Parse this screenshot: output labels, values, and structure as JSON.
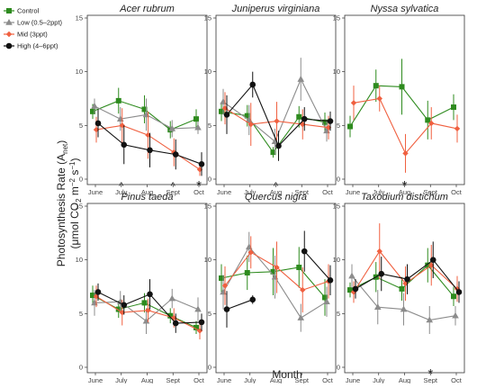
{
  "chart_data": {
    "type": "line",
    "ylabel_line1": "Photosynthesis Rate (A",
    "ylabel_sub": "net",
    "ylabel_line1_end": ")",
    "ylabel_line2": "(μmol CO",
    "ylabel_line2_sub2": "2",
    "ylabel_line2_m": " m",
    "ylabel_line2_sup1": "−2",
    "ylabel_line2_s": " s",
    "ylabel_line2_sup2": "−1",
    "ylabel_line2_end": ")",
    "xlabel": "Month",
    "categories": [
      "June",
      "July",
      "Aug",
      "Sept",
      "Oct"
    ],
    "ylim": [
      0,
      15
    ],
    "yticks": [
      0,
      5,
      10,
      15
    ],
    "legend": {
      "placement": "top-left",
      "entries": [
        {
          "name": "Control",
          "color": "#2e8b1e",
          "marker": "square"
        },
        {
          "name": "Low (0.5–2ppt)",
          "color": "#8c8c8c",
          "marker": "triangle"
        },
        {
          "name": "Mid (3ppt)",
          "color": "#f06040",
          "marker": "diamond"
        },
        {
          "name": "High (4–6ppt)",
          "color": "#111111",
          "marker": "circle"
        }
      ]
    },
    "panels": [
      {
        "title": "Acer rubrum",
        "series": [
          {
            "name": "Control",
            "x": [
              0,
              1,
              2,
              3,
              4
            ],
            "values": [
              6.3,
              7.3,
              6.5,
              4.6,
              5.6
            ],
            "err": [
              0.7,
              1.2,
              1.3,
              0.8,
              0.9
            ]
          },
          {
            "name": "Low (0.5–2ppt)",
            "x": [
              0,
              1,
              2,
              3,
              4
            ],
            "values": [
              6.8,
              5.6,
              6.0,
              4.7,
              4.8
            ],
            "err": [
              0.7,
              1.1,
              1.5,
              0.8,
              0.6
            ]
          },
          {
            "name": "Mid (3ppt)",
            "x": [
              0,
              1,
              2,
              3,
              4
            ],
            "values": [
              4.6,
              5.0,
              4.1,
              2.5,
              0.9
            ],
            "err": [
              1.2,
              1.6,
              2.2,
              1.3,
              0.6
            ]
          },
          {
            "name": "High (4–6ppt)",
            "x": [
              0,
              1,
              2,
              3,
              4
            ],
            "values": [
              5.2,
              3.2,
              2.7,
              2.3,
              1.4
            ],
            "err": [
              1.3,
              1.8,
              1.6,
              1.4,
              1.1
            ]
          }
        ],
        "annotations": [
          {
            "text": "^",
            "x": 1,
            "color": "#111111"
          },
          {
            "text": "^",
            "x": 3,
            "color": "#f06040"
          },
          {
            "text": "*",
            "x": 4,
            "color": "#f06040"
          }
        ]
      },
      {
        "title": "Juniperus virginiana",
        "series": [
          {
            "name": "Control",
            "x": [
              0,
              1,
              2,
              3,
              4
            ],
            "values": [
              6.3,
              5.9,
              2.5,
              5.8,
              5.3
            ],
            "err": [
              0.9,
              1.0,
              0.5,
              1.0,
              0.9
            ]
          },
          {
            "name": "Low (0.5–2ppt)",
            "x": [
              0,
              1,
              2,
              3,
              4
            ],
            "values": [
              7.2,
              5.5,
              3.5,
              9.3,
              4.5
            ],
            "err": [
              1.2,
              1.4,
              1.2,
              2.0,
              1.0
            ]
          },
          {
            "name": "Mid (3ppt)",
            "x": [
              0,
              1,
              2,
              3,
              4
            ],
            "values": [
              6.6,
              5.1,
              5.4,
              5.1,
              4.8
            ],
            "err": [
              1.5,
              2.0,
              1.8,
              1.4,
              1.1
            ]
          },
          {
            "name": "High (4–6ppt)",
            "x": [
              0,
              1,
              2,
              3,
              4
            ],
            "values": [
              6.0,
              8.8,
              3.1,
              5.6,
              5.4
            ],
            "err": [
              1.8,
              1.2,
              1.4,
              1.1,
              0.9
            ]
          }
        ],
        "annotations": [
          {
            "text": "^",
            "x": 2,
            "color": "#f06040"
          }
        ]
      },
      {
        "title": "Nyssa sylvatica",
        "series": [
          {
            "name": "Control",
            "x": [
              0,
              1,
              2,
              3,
              4
            ],
            "values": [
              4.9,
              8.7,
              8.6,
              5.5,
              6.7
            ],
            "err": [
              1.0,
              1.5,
              2.6,
              1.8,
              1.2
            ]
          },
          {
            "name": "Mid (3ppt)",
            "x": [
              0,
              1,
              2,
              3,
              4
            ],
            "values": [
              7.1,
              7.5,
              2.4,
              5.2,
              4.7
            ],
            "err": [
              1.6,
              1.2,
              1.8,
              1.5,
              1.3
            ]
          }
        ],
        "annotations": [
          {
            "text": "*",
            "x": 2,
            "color": "#f06040"
          }
        ]
      },
      {
        "title": "Pinus taeda",
        "series": [
          {
            "name": "Control",
            "x": [
              0,
              1,
              2,
              3,
              4
            ],
            "values": [
              6.7,
              5.4,
              6.0,
              4.8,
              3.7
            ],
            "err": [
              0.9,
              0.8,
              0.9,
              0.7,
              0.6
            ]
          },
          {
            "name": "Low (0.5–2ppt)",
            "x": [
              0,
              1,
              2,
              3,
              4
            ],
            "values": [
              6.0,
              6.1,
              4.3,
              6.4,
              5.4
            ],
            "err": [
              1.2,
              1.0,
              1.2,
              0.9,
              1.1
            ]
          },
          {
            "name": "Mid (3ppt)",
            "x": [
              0,
              1,
              2,
              3,
              4
            ],
            "values": [
              6.6,
              5.1,
              5.3,
              4.6,
              3.4
            ],
            "err": [
              1.0,
              1.2,
              1.1,
              0.9,
              0.8
            ]
          },
          {
            "name": "High (4–6ppt)",
            "x": [
              0,
              1,
              2,
              3,
              4
            ],
            "values": [
              7.0,
              5.8,
              6.8,
              4.1,
              4.2
            ],
            "err": [
              0.8,
              0.9,
              1.4,
              0.9,
              0.8
            ]
          }
        ],
        "annotations": []
      },
      {
        "title": "Quercus nigra",
        "series": [
          {
            "name": "Control",
            "x": [
              0,
              1,
              2,
              3,
              4
            ],
            "values": [
              8.3,
              8.8,
              8.9,
              9.3,
              6.5
            ],
            "err": [
              1.3,
              1.6,
              2.2,
              1.9,
              1.7
            ]
          },
          {
            "name": "Low (0.5–2ppt)",
            "x": [
              0,
              1,
              2,
              3,
              4
            ],
            "values": [
              7.0,
              11.2,
              8.4,
              4.6,
              6.1
            ],
            "err": [
              1.6,
              1.4,
              2.0,
              1.3,
              1.4
            ]
          },
          {
            "name": "Mid (3ppt)",
            "x": [
              0,
              1,
              2,
              3,
              4
            ],
            "values": [
              7.6,
              10.7,
              9.3,
              7.2,
              8.0
            ],
            "err": [
              1.8,
              1.5,
              2.4,
              2.1,
              1.6
            ]
          },
          {
            "name": "High (4–6ppt)",
            "x": [
              0,
              1,
              2,
              3,
              4
            ],
            "values": [
              5.4,
              6.3,
              null,
              10.8,
              8.1
            ],
            "err": [
              1.7,
              0.4,
              0,
              1.9,
              1.4
            ]
          }
        ],
        "annotations": []
      },
      {
        "title": "Taxodium distichum",
        "series": [
          {
            "name": "Control",
            "x": [
              0,
              1,
              2,
              3,
              4
            ],
            "values": [
              7.2,
              8.4,
              7.3,
              9.5,
              6.6
            ],
            "err": [
              0.7,
              1.4,
              1.1,
              1.6,
              0.9
            ]
          },
          {
            "name": "Low (0.5–2ppt)",
            "x": [
              0,
              1,
              2,
              3,
              4
            ],
            "values": [
              8.5,
              5.6,
              5.4,
              4.4,
              4.8
            ],
            "err": [
              1.1,
              1.6,
              1.5,
              1.3,
              0.9
            ]
          },
          {
            "name": "Mid (3ppt)",
            "x": [
              0,
              1,
              2,
              3,
              4
            ],
            "values": [
              7.0,
              10.8,
              7.8,
              9.5,
              7.3
            ],
            "err": [
              1.0,
              2.6,
              1.6,
              1.9,
              1.2
            ]
          },
          {
            "name": "High (4–6ppt)",
            "x": [
              0,
              1,
              2,
              3,
              4
            ],
            "values": [
              7.3,
              8.7,
              8.2,
              10.0,
              7.0
            ],
            "err": [
              0.9,
              1.6,
              1.4,
              1.7,
              1.0
            ]
          }
        ],
        "annotations": [
          {
            "text": "*",
            "x": 3,
            "color": "#8c8c8c"
          }
        ]
      }
    ]
  }
}
